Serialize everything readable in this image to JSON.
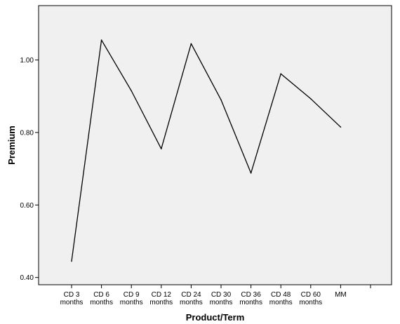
{
  "chart_data": {
    "type": "line",
    "title": "",
    "xlabel": "Product/Term",
    "ylabel": "Premium",
    "categories": [
      [
        "CD 3",
        "months"
      ],
      [
        "CD 6",
        "months"
      ],
      [
        "CD 9",
        "months"
      ],
      [
        "CD 12",
        "months"
      ],
      [
        "CD 24",
        "months"
      ],
      [
        "CD 30",
        "months"
      ],
      [
        "CD 36",
        "months"
      ],
      [
        "CD 48",
        "months"
      ],
      [
        "CD 60",
        "months"
      ],
      [
        "MM"
      ]
    ],
    "series": [
      {
        "values": [
          0.445,
          1.055,
          0.915,
          0.755,
          1.045,
          0.89,
          0.688,
          0.962,
          0.893,
          0.815
        ],
        "color": "#000000"
      }
    ],
    "yticks": [
      0.4,
      0.6,
      0.8,
      1.0
    ],
    "ytick_labels": [
      "0.40",
      "0.60",
      "0.80",
      "1.00"
    ],
    "ylim": [
      0.38,
      1.15
    ],
    "grid": false,
    "legend": "none",
    "colors": {
      "plot_background": "#f0f0f0",
      "frame": "#000000",
      "line": "#000000"
    }
  }
}
